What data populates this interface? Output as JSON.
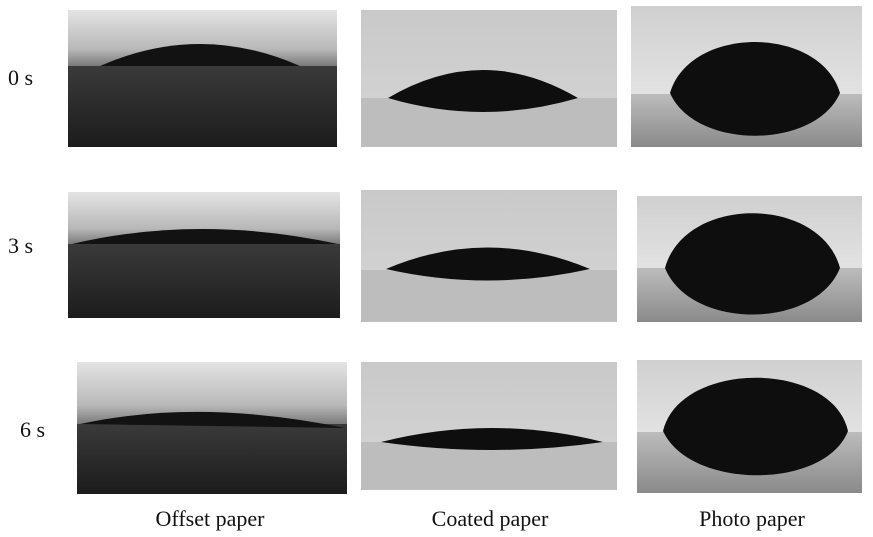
{
  "row_labels": [
    "0 s",
    "3 s",
    "6 s"
  ],
  "column_labels": [
    "Offset paper",
    "Coated paper",
    "Photo paper"
  ]
}
